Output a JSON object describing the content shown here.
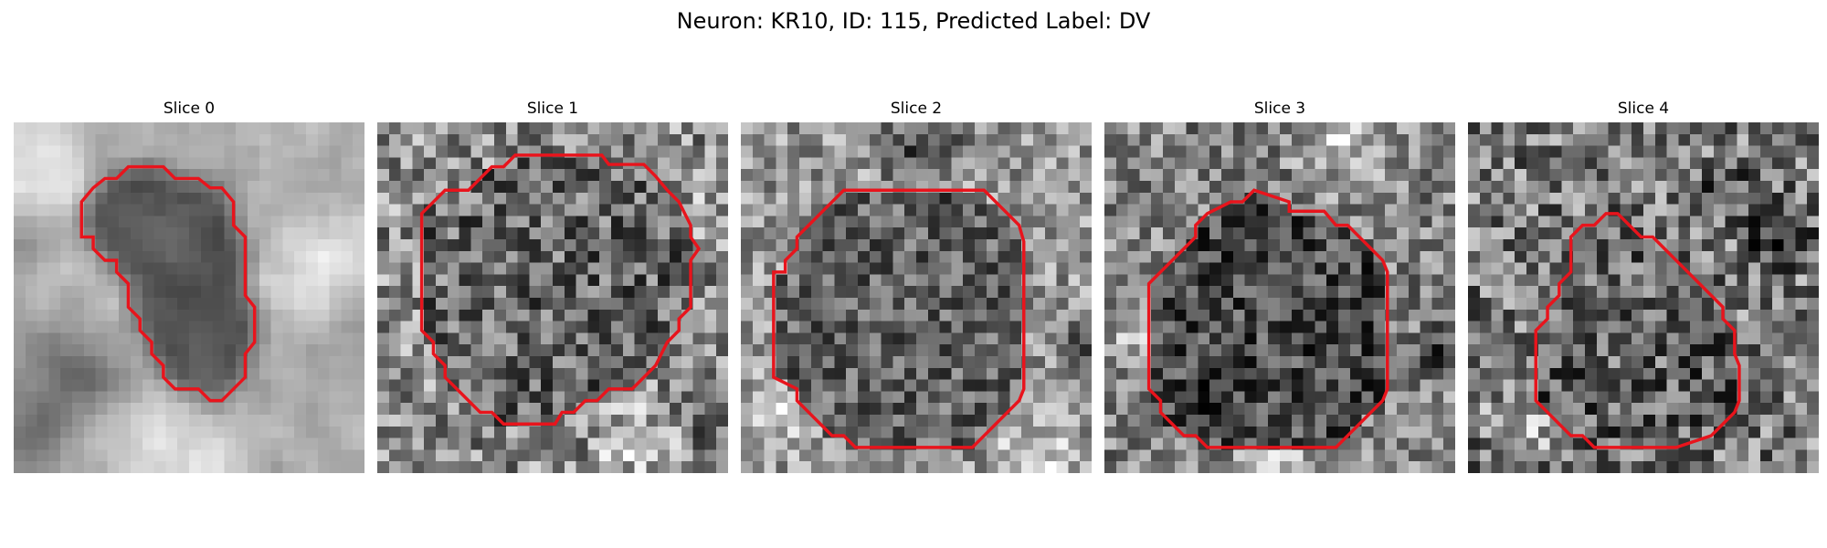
{
  "figure": {
    "title": "Neuron: KR10, ID: 115, Predicted Label: DV"
  },
  "panels": [
    {
      "title": "Slice 0"
    },
    {
      "title": "Slice 1"
    },
    {
      "title": "Slice 2"
    },
    {
      "title": "Slice 3"
    },
    {
      "title": "Slice 4"
    }
  ],
  "image": {
    "colormap": "grayscale",
    "contour_color": "#e8141c"
  }
}
